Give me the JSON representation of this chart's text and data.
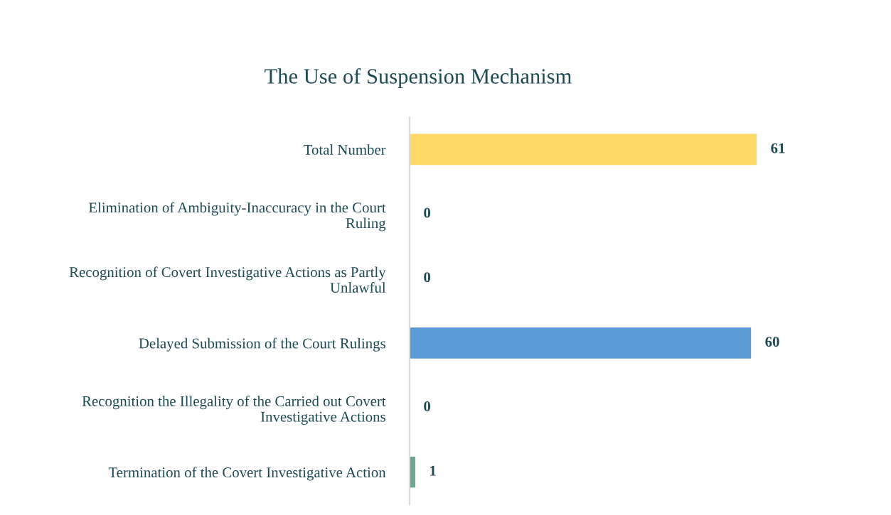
{
  "chart_data": {
    "type": "bar",
    "orientation": "horizontal",
    "title": "The Use of Suspension Mechanism",
    "categories": [
      "Total Number",
      "Elimination of Ambiguity-Inaccuracy in the Court\nRuling",
      "Recognition of Covert Investigative Actions as Partly\nUnlawful",
      "Delayed Submission of the Court Rulings",
      "Recognition the Illegality of the Carried out Covert\nInvestigative Actions",
      "Termination of the Covert Investigative Action"
    ],
    "values": [
      61,
      0,
      0,
      60,
      0,
      1
    ],
    "colors": [
      "#ffd966",
      "#ed7d31",
      "#a5a5a5",
      "#5b9bd5",
      "#70ad47",
      "#6aaa8e"
    ],
    "data_labels": true,
    "grid": false,
    "legend": false
  }
}
